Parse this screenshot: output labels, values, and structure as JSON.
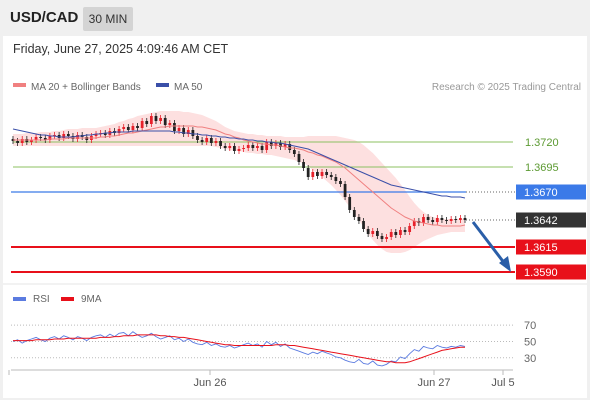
{
  "header": {
    "symbol": "USD/CAD",
    "timeframe": "30 MIN",
    "timestamp": "Friday, June 27, 2025 4:09:46 AM CET"
  },
  "legend": {
    "ma20": "MA 20 + Bollinger Bands",
    "ma50": "MA 50",
    "credit": "Research © 2025 Trading Central",
    "rsi": "RSI",
    "rsi_ma": "9MA"
  },
  "colors": {
    "bull": "#e8212b",
    "bear": "#222222",
    "ma20": "#f08080",
    "ma50": "#3a4fa8",
    "band_fill": "#fde0e0",
    "resistance": "#8cc062",
    "pivot": "#3b7ae8",
    "support": "#e8101a",
    "rsi": "#5b7be0",
    "rsi_ma": "#e8101a",
    "arrow": "#2a5ea8"
  },
  "chart_data": {
    "type": "line",
    "ylim": [
      1.3578,
      1.3768
    ],
    "price_levels": [
      {
        "value": 1.372,
        "label": "1.3720",
        "kind": "resistance"
      },
      {
        "value": 1.3695,
        "label": "1.3695",
        "kind": "resistance"
      },
      {
        "value": 1.367,
        "label": "1.3670",
        "kind": "pivot"
      },
      {
        "value": 1.3642,
        "label": "1.3642",
        "kind": "current"
      },
      {
        "value": 1.3615,
        "label": "1.3615",
        "kind": "support"
      },
      {
        "value": 1.359,
        "label": "1.3590",
        "kind": "support"
      }
    ],
    "x_labels": [
      "Jun 26",
      "Jun 27",
      "Jul 5"
    ],
    "close": [
      1.3721,
      1.3719,
      1.3723,
      1.372,
      1.3722,
      1.3725,
      1.3724,
      1.3722,
      1.3726,
      1.3727,
      1.3724,
      1.3728,
      1.3726,
      1.3723,
      1.3727,
      1.3725,
      1.3722,
      1.3726,
      1.3728,
      1.3729,
      1.3727,
      1.3731,
      1.3729,
      1.3733,
      1.3735,
      1.3732,
      1.3736,
      1.3734,
      1.3741,
      1.3738,
      1.3746,
      1.3741,
      1.3744,
      1.3737,
      1.3739,
      1.3731,
      1.3734,
      1.3728,
      1.3732,
      1.3726,
      1.3722,
      1.372,
      1.3724,
      1.3719,
      1.3721,
      1.3716,
      1.3714,
      1.3716,
      1.3711,
      1.3713,
      1.3714,
      1.3717,
      1.3714,
      1.3716,
      1.3712,
      1.372,
      1.3716,
      1.3719,
      1.3715,
      1.3718,
      1.3712,
      1.3708,
      1.37,
      1.3694,
      1.3685,
      1.369,
      1.3686,
      1.369,
      1.3687,
      1.3685,
      1.3681,
      1.3678,
      1.3665,
      1.3652,
      1.3645,
      1.3641,
      1.3633,
      1.3628,
      1.3631,
      1.3626,
      1.3623,
      1.3625,
      1.363,
      1.3627,
      1.3632,
      1.363,
      1.3636,
      1.3641,
      1.3639,
      1.3645,
      1.3642,
      1.364,
      1.3644,
      1.3642,
      1.3641,
      1.3643,
      1.3642,
      1.3644,
      1.3642
    ],
    "ma20": [
      1.3722,
      1.3722,
      1.3722,
      1.3722,
      1.3722,
      1.3722,
      1.3722,
      1.3722,
      1.3723,
      1.3723,
      1.3723,
      1.3723,
      1.3724,
      1.3724,
      1.3724,
      1.3724,
      1.3724,
      1.3724,
      1.3724,
      1.3725,
      1.3725,
      1.3726,
      1.3726,
      1.3727,
      1.3728,
      1.3729,
      1.3729,
      1.373,
      1.3731,
      1.3732,
      1.3733,
      1.3734,
      1.3735,
      1.3735,
      1.3736,
      1.3736,
      1.3736,
      1.3736,
      1.3736,
      1.3736,
      1.3735,
      1.3735,
      1.3734,
      1.3733,
      1.3732,
      1.373,
      1.3728,
      1.3727,
      1.3725,
      1.3724,
      1.3722,
      1.3721,
      1.372,
      1.3719,
      1.3718,
      1.3718,
      1.3717,
      1.3717,
      1.3716,
      1.3715,
      1.3714,
      1.3714,
      1.3713,
      1.3712,
      1.371,
      1.3709,
      1.3707,
      1.3706,
      1.3704,
      1.3702,
      1.37,
      1.3697,
      1.3694,
      1.369,
      1.3686,
      1.3682,
      1.3678,
      1.3674,
      1.367,
      1.3666,
      1.3662,
      1.3658,
      1.3654,
      1.3651,
      1.3648,
      1.3645,
      1.3643,
      1.3641,
      1.364,
      1.3639,
      1.3638,
      1.3637,
      1.3637,
      1.3636,
      1.3636,
      1.3636,
      1.3636,
      1.3636,
      1.3637
    ],
    "upper_band": [
      1.3728,
      1.3728,
      1.3728,
      1.3729,
      1.3729,
      1.3729,
      1.373,
      1.373,
      1.373,
      1.3731,
      1.3731,
      1.3732,
      1.3733,
      1.3733,
      1.3733,
      1.3734,
      1.3734,
      1.3734,
      1.3734,
      1.3735,
      1.3736,
      1.3737,
      1.3738,
      1.374,
      1.3741,
      1.3743,
      1.3744,
      1.3746,
      1.3747,
      1.3748,
      1.3749,
      1.375,
      1.3751,
      1.3751,
      1.3751,
      1.3751,
      1.3751,
      1.375,
      1.375,
      1.3749,
      1.3748,
      1.3747,
      1.3745,
      1.3743,
      1.3741,
      1.3738,
      1.3735,
      1.3733,
      1.3731,
      1.373,
      1.3729,
      1.3728,
      1.3728,
      1.3727,
      1.3727,
      1.3726,
      1.3726,
      1.3726,
      1.3726,
      1.3725,
      1.3725,
      1.3725,
      1.3725,
      1.3725,
      1.3726,
      1.3726,
      1.3726,
      1.3726,
      1.3726,
      1.3726,
      1.3726,
      1.3725,
      1.3724,
      1.3723,
      1.3722,
      1.372,
      1.3717,
      1.3713,
      1.3709,
      1.3704,
      1.3699,
      1.3694,
      1.3689,
      1.3684,
      1.3678,
      1.3672,
      1.3665,
      1.3659,
      1.3654,
      1.365,
      1.3647,
      1.3645,
      1.3644,
      1.3643,
      1.3643,
      1.3643,
      1.3643,
      1.3643,
      1.3643
    ],
    "lower_band": [
      1.3716,
      1.3716,
      1.3716,
      1.3716,
      1.3716,
      1.3716,
      1.3716,
      1.3716,
      1.3716,
      1.3716,
      1.3716,
      1.3716,
      1.3716,
      1.3716,
      1.3716,
      1.3716,
      1.3716,
      1.3716,
      1.3716,
      1.3716,
      1.3716,
      1.3716,
      1.3716,
      1.3716,
      1.3716,
      1.3716,
      1.3716,
      1.3716,
      1.3716,
      1.3716,
      1.3716,
      1.3716,
      1.3716,
      1.3716,
      1.3716,
      1.3716,
      1.3716,
      1.3716,
      1.3716,
      1.3716,
      1.3716,
      1.3716,
      1.3716,
      1.3716,
      1.3715,
      1.3714,
      1.3713,
      1.3712,
      1.3711,
      1.3711,
      1.371,
      1.3709,
      1.3709,
      1.3708,
      1.3708,
      1.3707,
      1.3707,
      1.3706,
      1.3705,
      1.3704,
      1.3703,
      1.3702,
      1.37,
      1.3699,
      1.3696,
      1.3692,
      1.3689,
      1.3685,
      1.3681,
      1.3677,
      1.3672,
      1.3667,
      1.3661,
      1.3655,
      1.3649,
      1.3642,
      1.3635,
      1.3628,
      1.3622,
      1.3617,
      1.3613,
      1.361,
      1.3609,
      1.3609,
      1.3609,
      1.361,
      1.3612,
      1.3615,
      1.3618,
      1.3621,
      1.3623,
      1.3625,
      1.3627,
      1.3628,
      1.3629,
      1.363,
      1.363,
      1.363,
      1.363
    ],
    "ma50": [
      1.3733,
      1.3732,
      1.3731,
      1.373,
      1.3729,
      1.3728,
      1.3727,
      1.3727,
      1.3726,
      1.3726,
      1.3725,
      1.3725,
      1.3725,
      1.3725,
      1.3726,
      1.3726,
      1.3727,
      1.3727,
      1.3728,
      1.3728,
      1.3729,
      1.3729,
      1.373,
      1.373,
      1.373,
      1.373,
      1.3731,
      1.3731,
      1.3731,
      1.3731,
      1.3731,
      1.3731,
      1.3731,
      1.3731,
      1.3731,
      1.373,
      1.373,
      1.3729,
      1.3729,
      1.3728,
      1.3728,
      1.3727,
      1.3727,
      1.3726,
      1.3726,
      1.3725,
      1.3725,
      1.3724,
      1.3724,
      1.3723,
      1.3723,
      1.3722,
      1.3722,
      1.3721,
      1.3721,
      1.372,
      1.372,
      1.3719,
      1.3719,
      1.3718,
      1.3717,
      1.3716,
      1.3715,
      1.3714,
      1.3713,
      1.3711,
      1.3709,
      1.3707,
      1.3705,
      1.3703,
      1.3701,
      1.3699,
      1.3697,
      1.3695,
      1.3693,
      1.3691,
      1.3689,
      1.3687,
      1.3685,
      1.3683,
      1.3681,
      1.3679,
      1.3677,
      1.3676,
      1.3675,
      1.3674,
      1.3673,
      1.3672,
      1.3671,
      1.367,
      1.3669,
      1.3668,
      1.3667,
      1.3666,
      1.3666,
      1.3665,
      1.3665,
      1.3665,
      1.3664
    ],
    "rsi": {
      "ylim": [
        15,
        80
      ],
      "levels": [
        70,
        50,
        30
      ],
      "values": [
        50,
        52,
        48,
        51,
        53,
        55,
        52,
        50,
        54,
        56,
        53,
        57,
        55,
        52,
        56,
        54,
        51,
        55,
        57,
        58,
        55,
        59,
        56,
        60,
        61,
        57,
        62,
        58,
        55,
        57,
        60,
        56,
        53,
        55,
        57,
        52,
        54,
        50,
        53,
        49,
        47,
        46,
        49,
        45,
        47,
        44,
        43,
        45,
        42,
        44,
        46,
        48,
        45,
        47,
        43,
        50,
        46,
        49,
        44,
        47,
        42,
        40,
        38,
        36,
        34,
        37,
        35,
        38,
        36,
        34,
        31,
        30,
        27,
        25,
        24,
        28,
        23,
        22,
        26,
        21,
        20,
        22,
        26,
        25,
        31,
        29,
        35,
        40,
        38,
        44,
        42,
        41,
        45,
        43,
        42,
        44,
        43,
        45,
        44
      ],
      "ma": [
        51,
        51,
        51,
        51,
        51,
        52,
        52,
        52,
        52,
        53,
        53,
        53,
        54,
        54,
        54,
        54,
        54,
        54,
        54,
        55,
        55,
        55,
        56,
        56,
        57,
        57,
        57,
        58,
        58,
        58,
        58,
        58,
        57,
        57,
        56,
        56,
        55,
        55,
        54,
        53,
        52,
        51,
        50,
        49,
        48,
        47,
        46,
        46,
        45,
        45,
        45,
        45,
        45,
        45,
        45,
        45,
        45,
        46,
        46,
        46,
        45,
        45,
        44,
        43,
        42,
        41,
        40,
        39,
        38,
        37,
        36,
        35,
        34,
        33,
        32,
        31,
        30,
        29,
        28,
        27,
        26,
        25,
        25,
        24,
        24,
        24,
        25,
        27,
        29,
        31,
        33,
        35,
        37,
        39,
        40,
        41,
        42,
        43,
        43
      ]
    }
  }
}
